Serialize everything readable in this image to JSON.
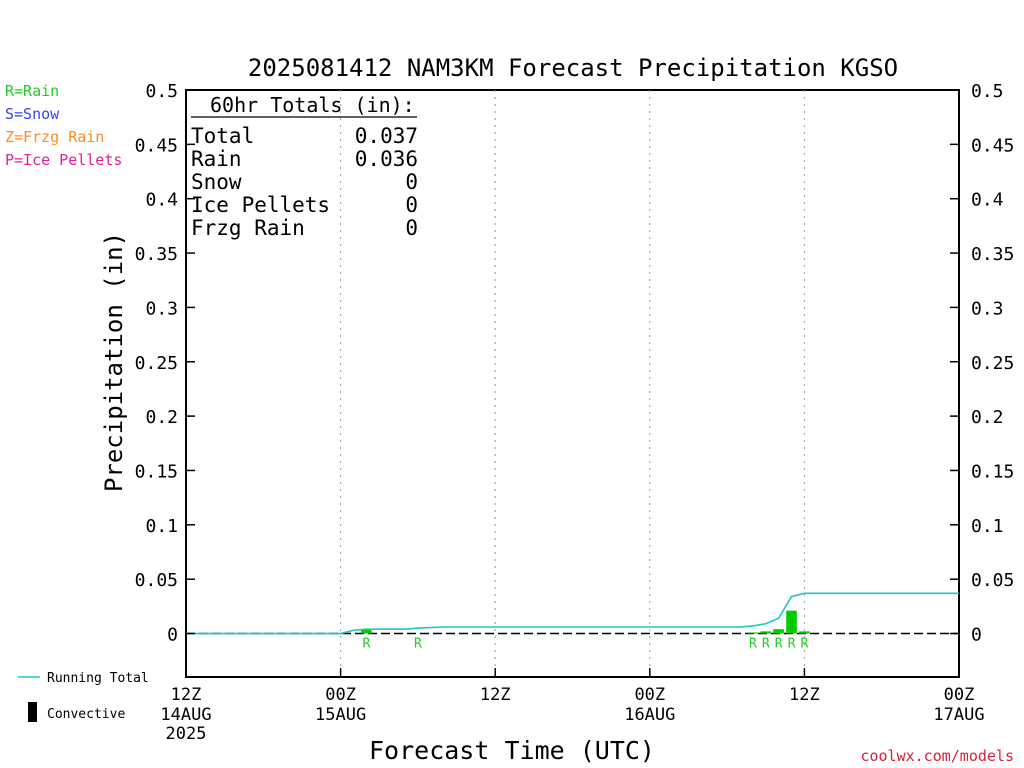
{
  "chart_data": {
    "type": "bar",
    "title": "2025081412 NAM3KM Forecast Precipitation KGSO",
    "xlabel": "Forecast Time (UTC)",
    "ylabel": "Precipitation (in)",
    "ylim": [
      -0.04,
      0.5
    ],
    "xlim_hours": [
      0,
      60
    ],
    "grid": "vertical dotted at 12-hour ticks",
    "y_ticks": [
      "0.5",
      "0.45",
      "0.4",
      "0.35",
      "0.3",
      "0.25",
      "0.2",
      "0.15",
      "0.1",
      "0.05",
      "0"
    ],
    "y_tick_values": [
      0.5,
      0.45,
      0.4,
      0.35,
      0.3,
      0.25,
      0.2,
      0.15,
      0.1,
      0.05,
      0
    ],
    "x_ticks": [
      {
        "hour": 0,
        "time": "12Z",
        "date": "14AUG",
        "year": "2025"
      },
      {
        "hour": 12,
        "time": "00Z",
        "date": "15AUG",
        "year": ""
      },
      {
        "hour": 24,
        "time": "12Z",
        "date": "",
        "year": ""
      },
      {
        "hour": 36,
        "time": "00Z",
        "date": "16AUG",
        "year": ""
      },
      {
        "hour": 48,
        "time": "12Z",
        "date": "",
        "year": ""
      },
      {
        "hour": 60,
        "time": "00Z",
        "date": "17AUG",
        "year": ""
      }
    ],
    "bars": [
      {
        "hour": 14,
        "value": 0.004,
        "ptype": "R"
      },
      {
        "hour": 18,
        "value": 0.0,
        "ptype": "R"
      },
      {
        "hour": 44,
        "value": 0.001,
        "ptype": "R"
      },
      {
        "hour": 45,
        "value": 0.002,
        "ptype": "R"
      },
      {
        "hour": 46,
        "value": 0.004,
        "ptype": "R"
      },
      {
        "hour": 47,
        "value": 0.021,
        "ptype": "R"
      },
      {
        "hour": 48,
        "value": 0.002,
        "ptype": "R"
      }
    ],
    "running_total": {
      "name": "Running Total",
      "color": "#19c8c8",
      "points": [
        [
          0,
          0
        ],
        [
          12,
          0
        ],
        [
          13,
          0.003
        ],
        [
          14,
          0.004
        ],
        [
          17,
          0.004
        ],
        [
          18,
          0.005
        ],
        [
          20,
          0.006
        ],
        [
          36,
          0.006
        ],
        [
          43,
          0.006
        ],
        [
          44,
          0.007
        ],
        [
          45,
          0.009
        ],
        [
          46,
          0.014
        ],
        [
          47,
          0.034
        ],
        [
          48,
          0.037
        ],
        [
          60,
          0.037
        ]
      ]
    },
    "totals_box": {
      "header": "60hr Totals (in):",
      "rows": [
        {
          "label": "Total",
          "value": "0.037"
        },
        {
          "label": "Rain",
          "value": "0.036"
        },
        {
          "label": "Snow",
          "value": "0"
        },
        {
          "label": "Ice Pellets",
          "value": "0"
        },
        {
          "label": "Frzg Rain",
          "value": "0"
        }
      ]
    },
    "ptype_legend": [
      {
        "text": "R=Rain",
        "color": "#22cc22"
      },
      {
        "text": "S=Snow",
        "color": "#3344ee"
      },
      {
        "text": "Z=Frzg Rain",
        "color": "#ff8c1a"
      },
      {
        "text": "P=Ice Pellets",
        "color": "#e61e9e"
      }
    ],
    "bottom_legend": {
      "running_total": "Running Total",
      "convective": "Convective"
    },
    "credit": "coolwx.com/models",
    "colors": {
      "rain_bar": "#00cc00",
      "rain_label": "#22cc22",
      "running_total": "#19c8c8",
      "zero_line": "#000000",
      "credit": "#d8203a"
    }
  }
}
